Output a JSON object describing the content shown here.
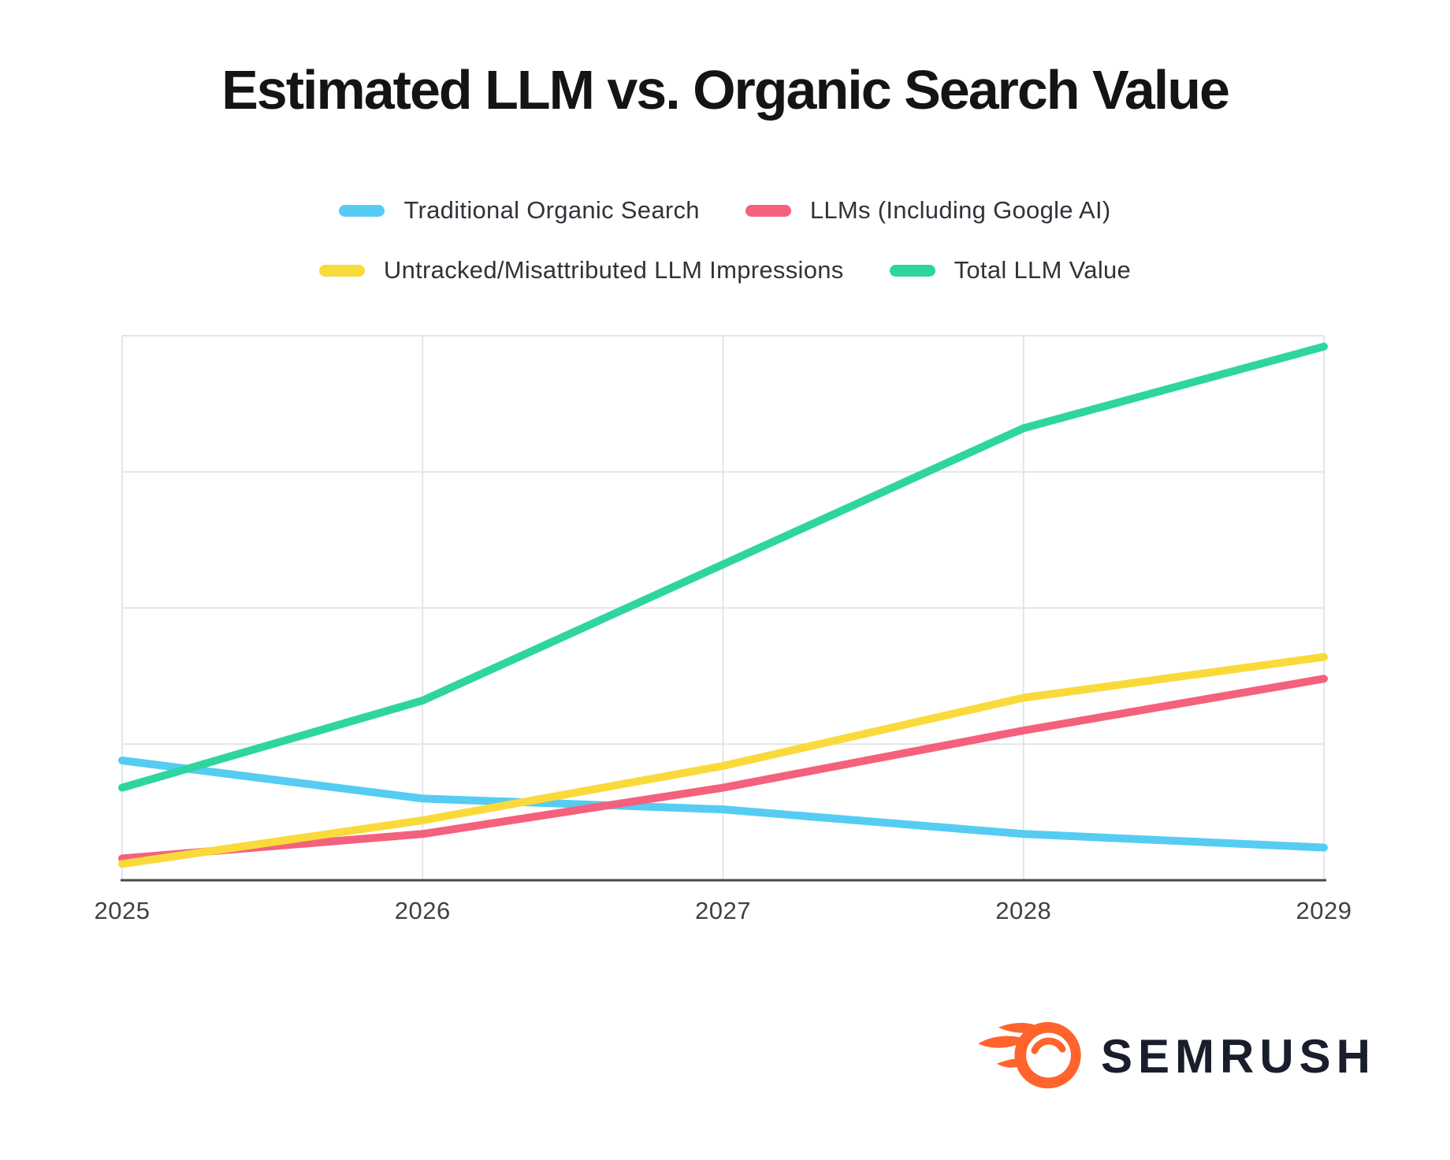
{
  "title": "Estimated LLM vs. Organic Search Value",
  "chart_data": {
    "type": "line",
    "title": "Estimated LLM vs. Organic Search Value",
    "x": [
      2025,
      2026,
      2027,
      2028,
      2029
    ],
    "xlabel": "",
    "ylabel": "",
    "ylim": [
      0,
      100
    ],
    "y_tick_labels_visible": false,
    "grid": true,
    "grid_step_y": 25,
    "legend_position": "top",
    "series": [
      {
        "name": "Traditional Organic Search",
        "color": "#56CCF2",
        "values": [
          22,
          15,
          13,
          8.5,
          6
        ]
      },
      {
        "name": "LLMs (Including Google AI)",
        "color": "#F4617D",
        "values": [
          4,
          8.5,
          17,
          27.5,
          37
        ]
      },
      {
        "name": "Untracked/Misattributed LLM Impressions",
        "color": "#F9DA3B",
        "values": [
          3,
          11,
          21,
          33.5,
          41
        ]
      },
      {
        "name": "Total LLM Value",
        "color": "#2FD5A0",
        "values": [
          17,
          33,
          58,
          83,
          98
        ]
      }
    ]
  },
  "footer": {
    "brand": "SEMRUSH",
    "brand_icon": "semrush-flame-icon",
    "brand_color": "#FF642D",
    "brand_text_color": "#1A1D2B"
  },
  "colors": {
    "background": "#ffffff",
    "gridline": "#E3E5EA",
    "axis": "#46494E",
    "tick_text": "#3E4247",
    "legend_text": "#2F343A",
    "title_text": "#141414"
  }
}
